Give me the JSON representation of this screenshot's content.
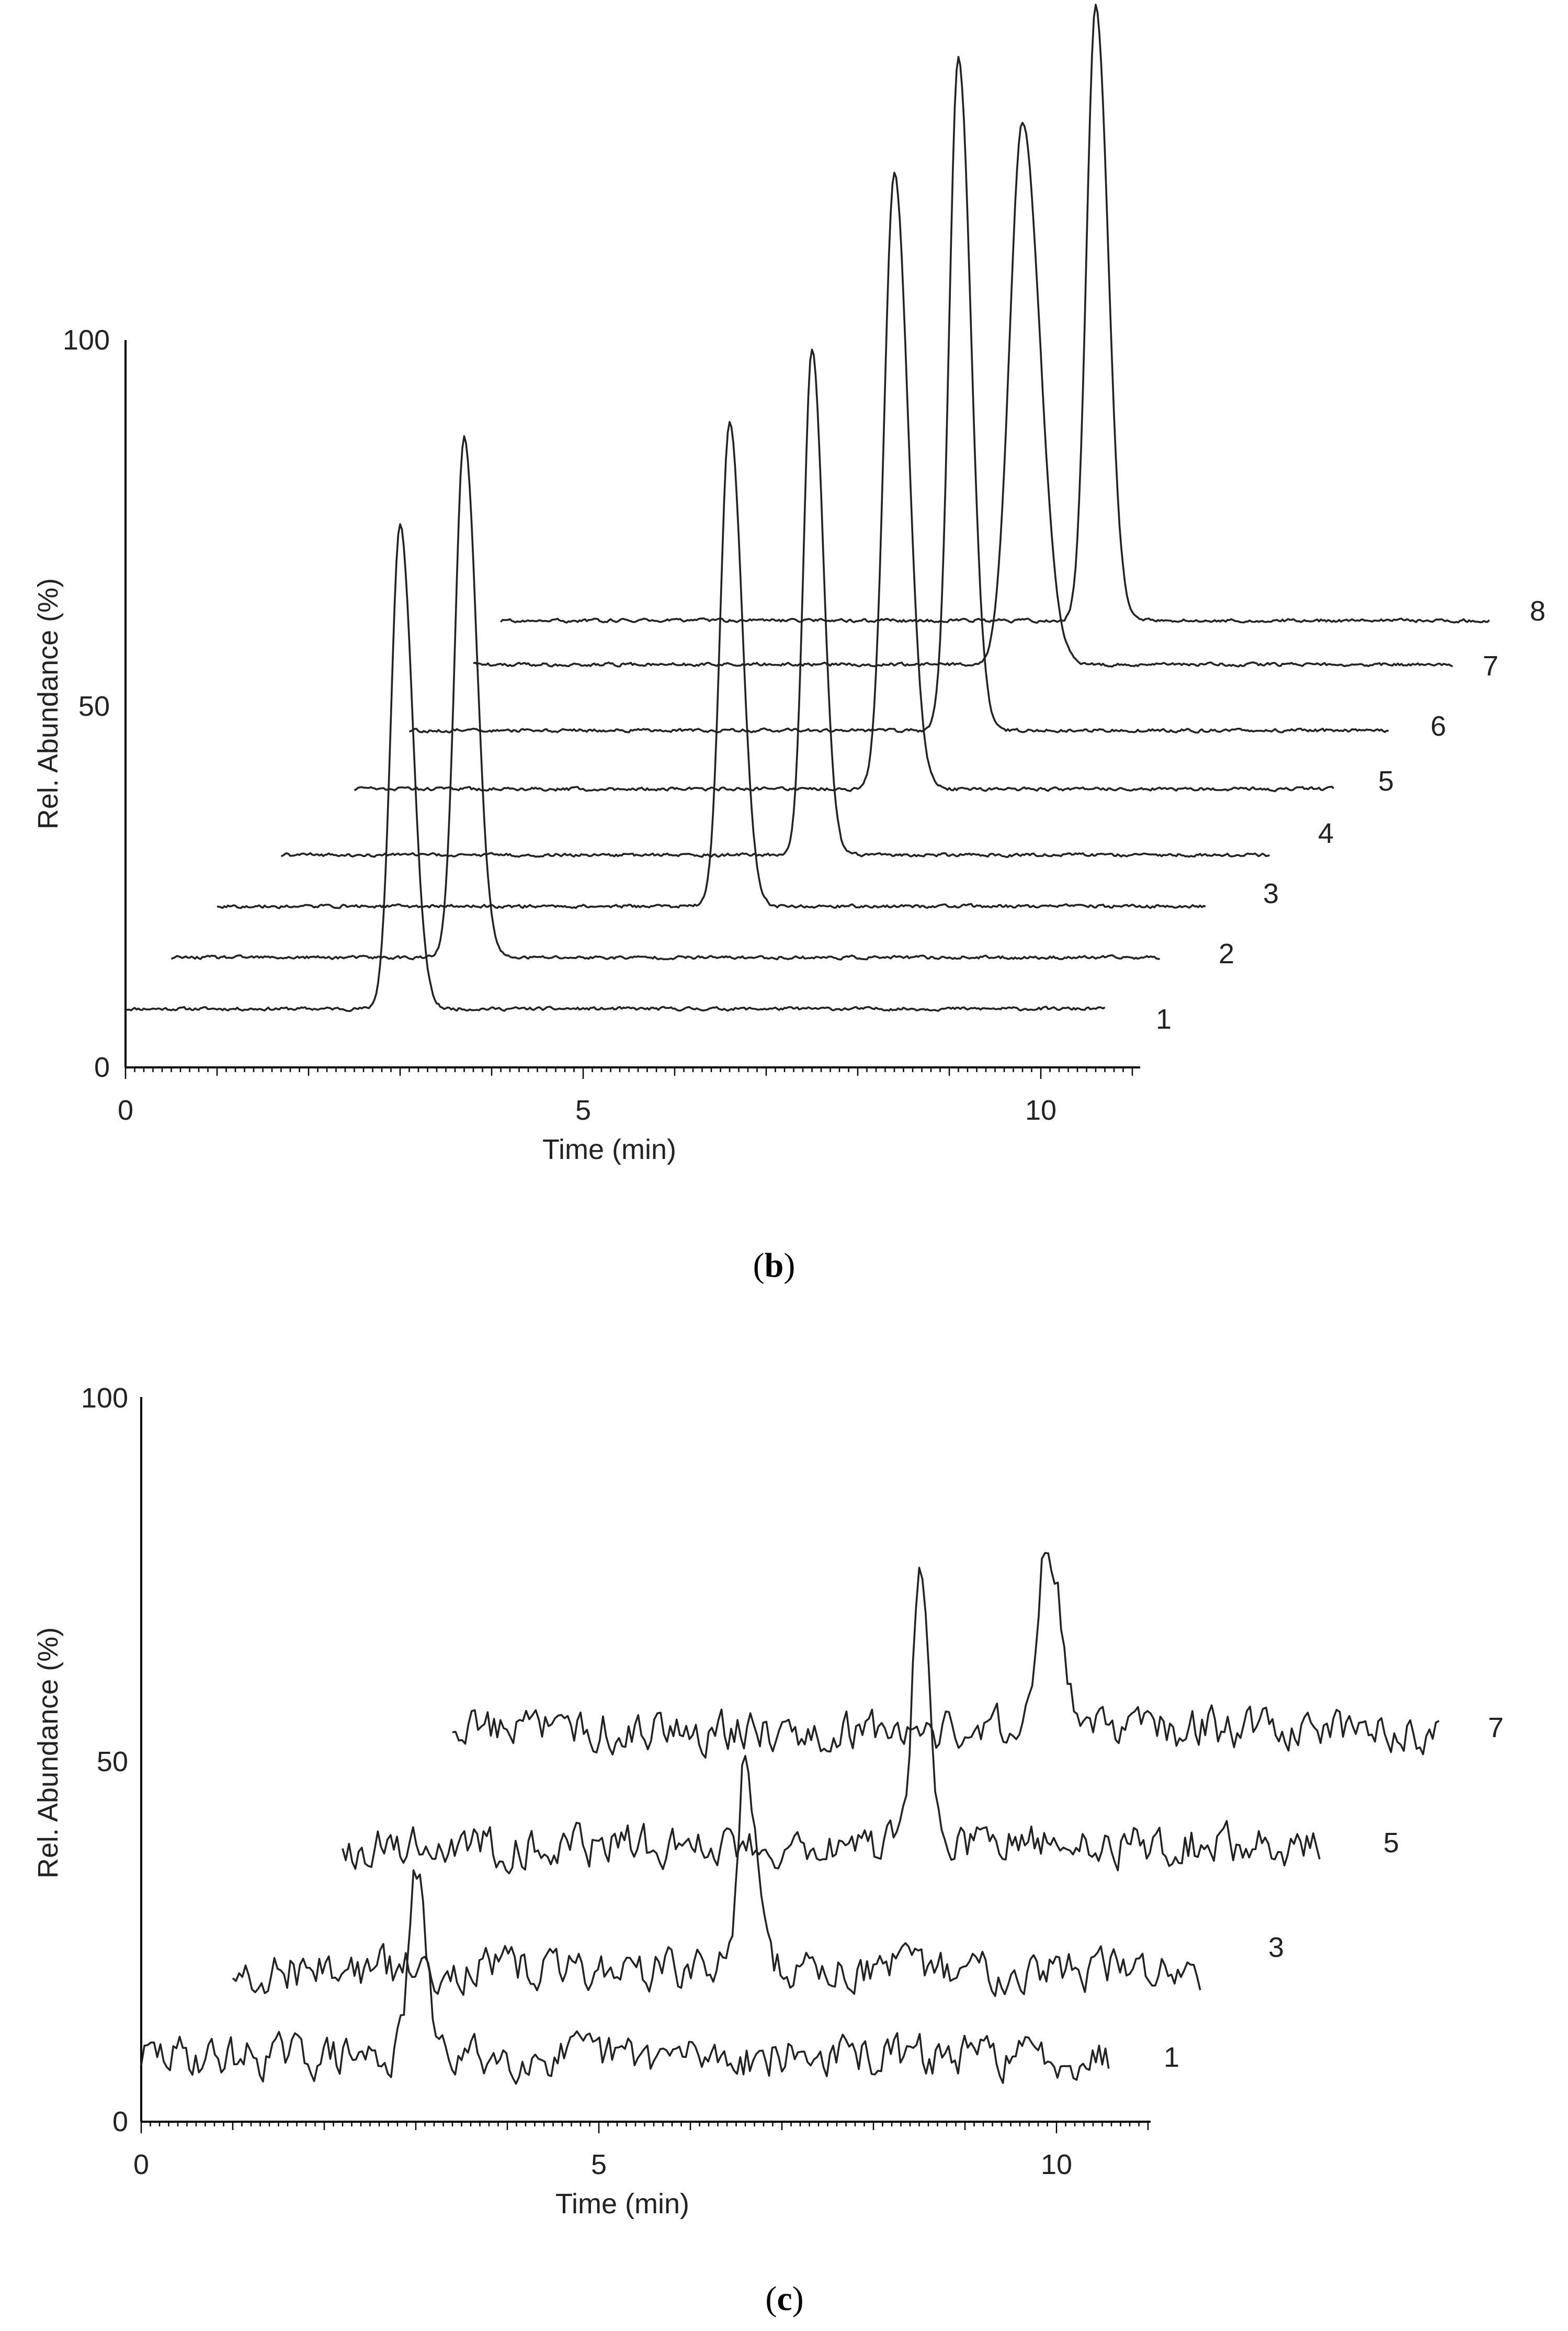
{
  "chart_data": [
    {
      "id": "b",
      "type": "line",
      "caption_open": "(",
      "caption_letter": "b",
      "caption_close": ")",
      "xlabel": "Time (min)",
      "ylabel": "Rel. Abundance (%)",
      "xlim": [
        0,
        11
      ],
      "ylim": [
        0,
        100
      ],
      "x_ticks": [
        "0",
        "5",
        "10"
      ],
      "y_ticks": [
        "0",
        "50",
        "100"
      ],
      "noise": 0.35,
      "series": [
        {
          "name": "1",
          "start": 0,
          "end": 10.7,
          "baseline": 8,
          "peak_time": 3.0,
          "peak_height": 74,
          "width": 0.1
        },
        {
          "name": "2",
          "start": 0.5,
          "end": 11.3,
          "baseline": 15,
          "peak_time": 3.7,
          "peak_height": 86,
          "width": 0.1
        },
        {
          "name": "3",
          "start": 1.0,
          "end": 11.8,
          "baseline": 22,
          "peak_time": 6.6,
          "peak_height": 88,
          "width": 0.1
        },
        {
          "name": "4",
          "start": 1.7,
          "end": 12.5,
          "baseline": 29,
          "peak_time": 7.5,
          "peak_height": 98,
          "width": 0.09
        },
        {
          "name": "5",
          "start": 2.5,
          "end": 13.2,
          "baseline": 38,
          "peak_time": 8.4,
          "peak_height": 122,
          "width": 0.11
        },
        {
          "name": "6",
          "start": 3.1,
          "end": 13.8,
          "baseline": 46,
          "peak_time": 9.1,
          "peak_height": 138,
          "width": 0.1
        },
        {
          "name": "7",
          "start": 3.8,
          "end": 14.5,
          "baseline": 55,
          "peak_time": 9.8,
          "peak_height": 129,
          "width": 0.14
        },
        {
          "name": "8",
          "start": 4.1,
          "end": 14.9,
          "baseline": 61,
          "peak_time": 10.6,
          "peak_height": 145,
          "width": 0.1
        }
      ]
    },
    {
      "id": "c",
      "type": "line",
      "caption_open": "(",
      "caption_letter": "c",
      "caption_close": ")",
      "xlabel": "Time (min)",
      "ylabel": "Rel. Abundance (%)",
      "xlim": [
        0,
        11
      ],
      "ylim": [
        0,
        100
      ],
      "x_ticks": [
        "0",
        "5",
        "10"
      ],
      "y_ticks": [
        "0",
        "50",
        "100"
      ],
      "noise": 4.5,
      "series": [
        {
          "name": "1",
          "start": 0,
          "end": 10.6,
          "baseline": 9,
          "peak_time": 3.0,
          "peak_height": 34,
          "width": 0.08
        },
        {
          "name": "3",
          "start": 1.0,
          "end": 11.6,
          "baseline": 21,
          "peak_time": 6.6,
          "peak_height": 51,
          "width": 0.08
        },
        {
          "name": "5",
          "start": 2.2,
          "end": 12.9,
          "baseline": 38,
          "peak_time": 8.5,
          "peak_height": 74,
          "width": 0.08
        },
        {
          "name": "7",
          "start": 3.4,
          "end": 14.2,
          "baseline": 54,
          "peak_time": 9.9,
          "peak_height": 80,
          "width": 0.11
        }
      ]
    }
  ]
}
